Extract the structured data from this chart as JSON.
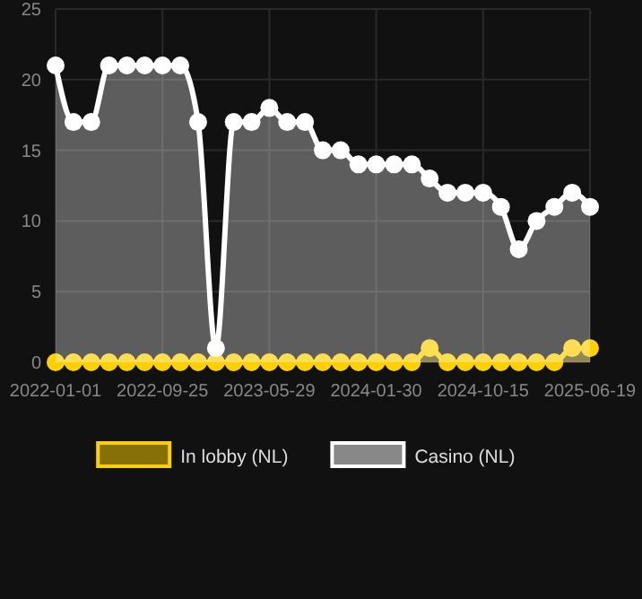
{
  "chart_data": {
    "type": "area",
    "categories": [
      "2022-01-01",
      null,
      null,
      null,
      null,
      null,
      "2022-09-25",
      null,
      null,
      null,
      null,
      null,
      "2023-05-29",
      null,
      null,
      null,
      null,
      null,
      "2024-01-30",
      null,
      null,
      null,
      null,
      null,
      "2024-10-15",
      null,
      null,
      null,
      null,
      null,
      "2025-06-19"
    ],
    "series": [
      {
        "name": "In lobby (NL)",
        "color": "#ffd000",
        "values": [
          0,
          0,
          0,
          0,
          0,
          0,
          0,
          0,
          0,
          0,
          0,
          0,
          0,
          0,
          0,
          0,
          0,
          0,
          0,
          0,
          0,
          1,
          0,
          0,
          0,
          0,
          0,
          0,
          0,
          1,
          1
        ]
      },
      {
        "name": "Casino (NL)",
        "color": "#ffffff",
        "values": [
          21,
          17,
          17,
          21,
          21,
          21,
          21,
          21,
          17,
          1,
          17,
          17,
          18,
          17,
          17,
          15,
          15,
          14,
          14,
          14,
          14,
          13,
          12,
          12,
          12,
          11,
          8,
          10,
          11,
          12,
          11
        ]
      }
    ],
    "ylim": [
      0,
      25
    ],
    "yticks": [
      0,
      5,
      10,
      15,
      20,
      25
    ],
    "grid": true,
    "legend": "bottom",
    "marker": "circle"
  }
}
